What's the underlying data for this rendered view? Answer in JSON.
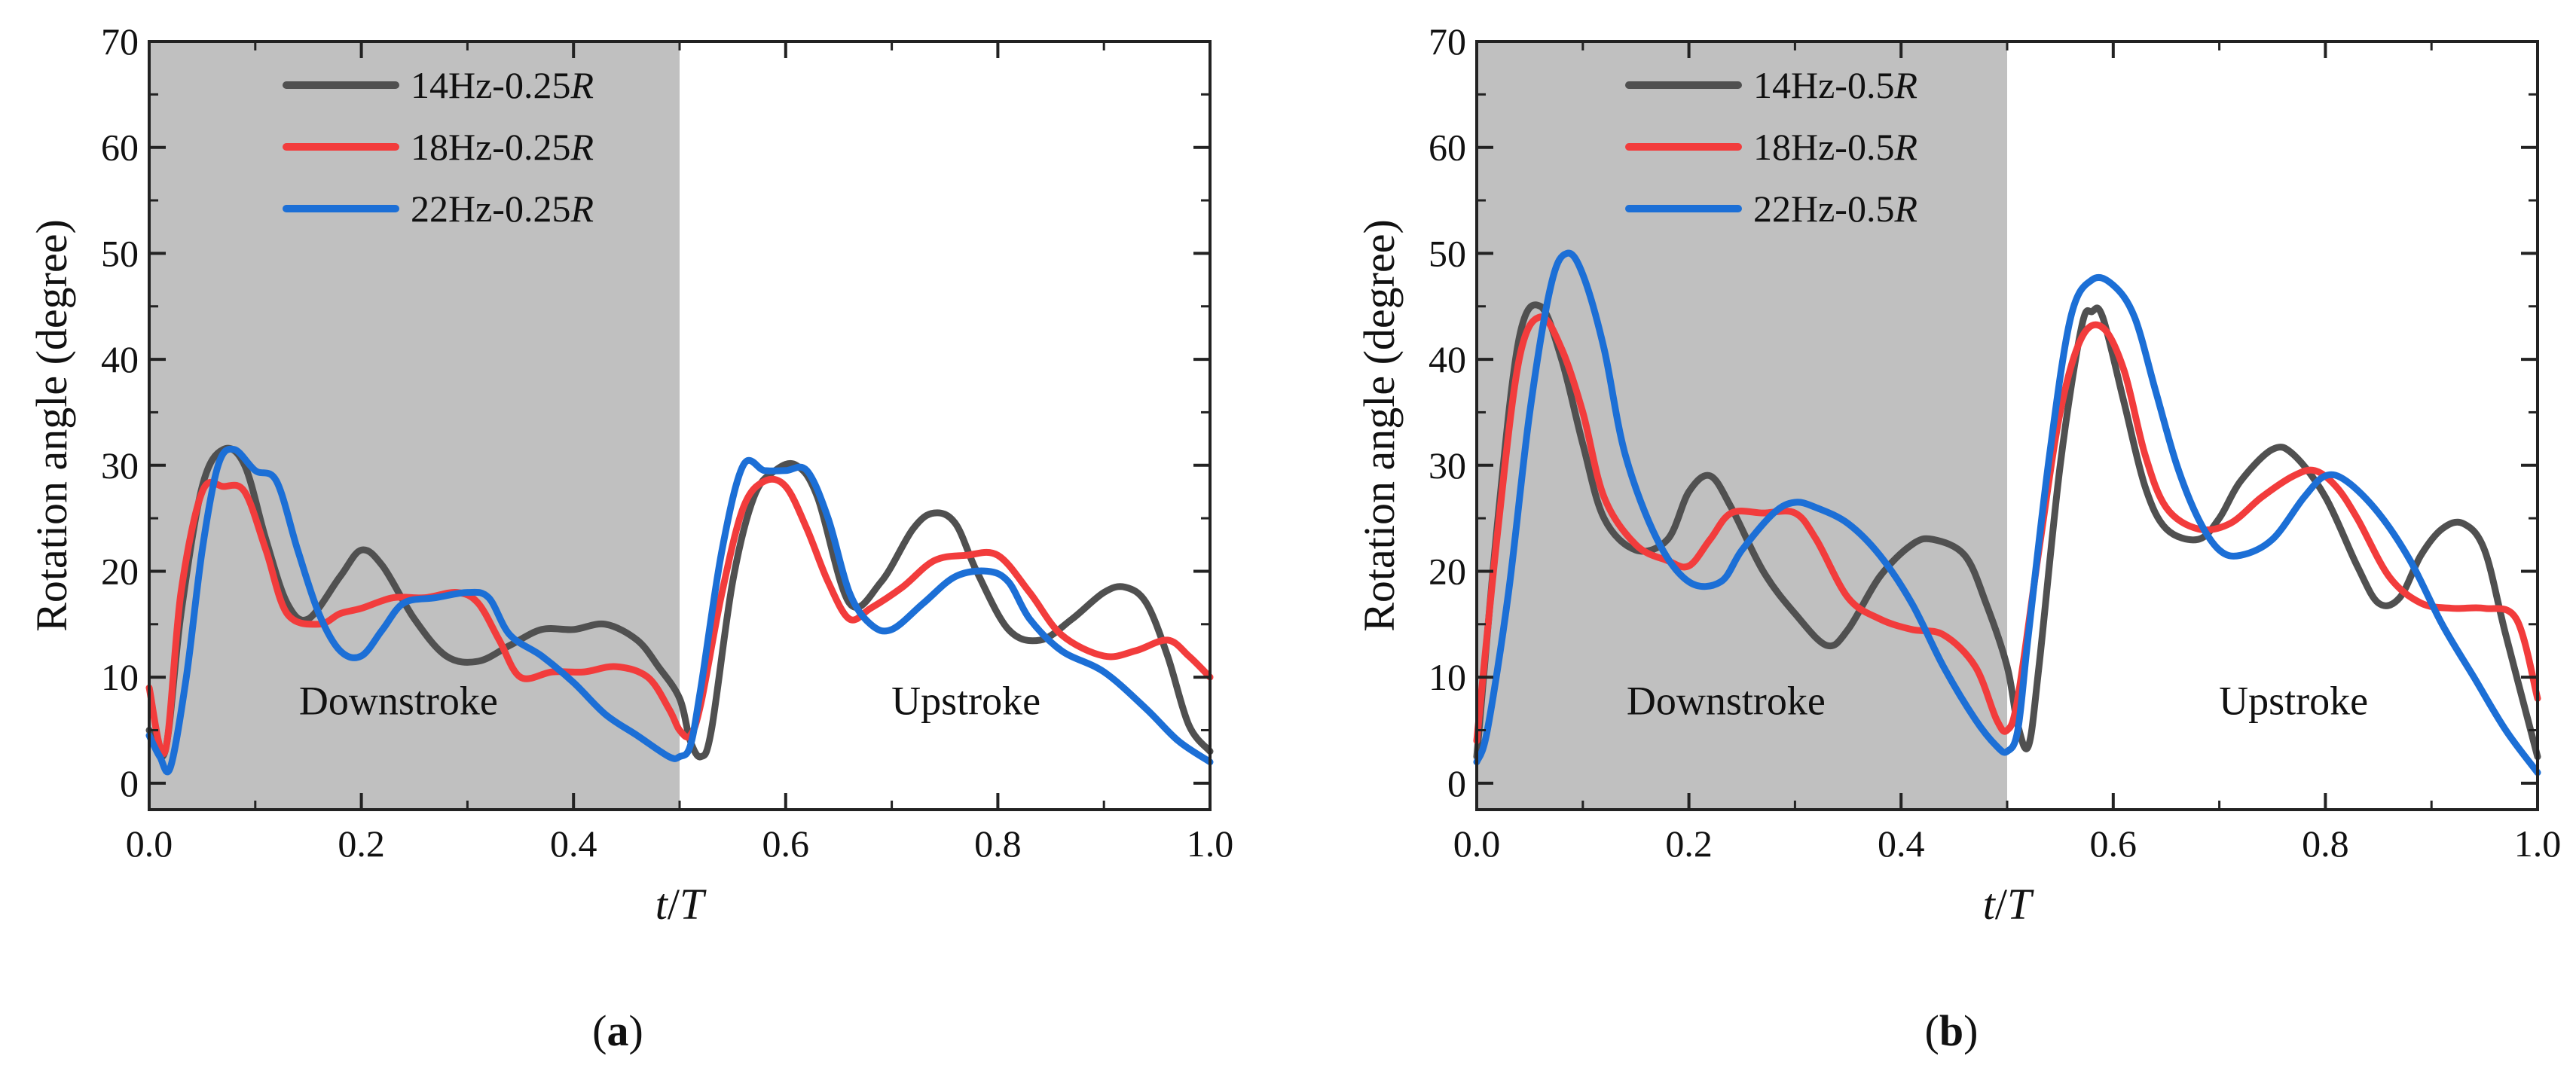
{
  "chart_data": [
    {
      "panel_label": "a",
      "type": "line",
      "xlabel": "t/T",
      "ylabel": "Rotation angle (degree)",
      "xlim": [
        0.0,
        1.0
      ],
      "ylim": [
        -2.5,
        70
      ],
      "xticks": [
        "0.0",
        "0.2",
        "0.4",
        "0.6",
        "0.8",
        "1.0"
      ],
      "yticks": [
        "0",
        "10",
        "20",
        "30",
        "40",
        "50",
        "60",
        "70"
      ],
      "shaded_region": {
        "from": 0.0,
        "to": 0.5,
        "color": "#c0c0c0"
      },
      "annotations": {
        "downstroke": "Downstroke",
        "upstroke": "Upstroke"
      },
      "series": [
        {
          "name": "14Hz-0.25R",
          "legend_main": "14Hz-0.25",
          "legend_italic": "R",
          "color": "#505050",
          "x": [
            0.0,
            0.015,
            0.03,
            0.05,
            0.07,
            0.09,
            0.11,
            0.13,
            0.15,
            0.18,
            0.2,
            0.22,
            0.25,
            0.28,
            0.31,
            0.34,
            0.37,
            0.4,
            0.43,
            0.46,
            0.48,
            0.5,
            0.51,
            0.52,
            0.53,
            0.55,
            0.57,
            0.59,
            0.61,
            0.63,
            0.66,
            0.69,
            0.72,
            0.74,
            0.76,
            0.78,
            0.81,
            0.84,
            0.87,
            0.9,
            0.92,
            0.94,
            0.96,
            0.98,
            1.0
          ],
          "y": [
            5.0,
            3.0,
            16.0,
            28.0,
            31.5,
            30.0,
            23.0,
            17.0,
            15.5,
            19.5,
            22.0,
            20.5,
            15.5,
            12.0,
            11.5,
            13.0,
            14.5,
            14.5,
            15.0,
            13.5,
            11.0,
            8.0,
            4.0,
            2.5,
            5.0,
            19.0,
            27.0,
            29.5,
            30.0,
            27.0,
            17.0,
            19.0,
            24.0,
            25.5,
            24.5,
            20.0,
            14.5,
            13.5,
            15.5,
            18.0,
            18.5,
            17.0,
            12.0,
            5.5,
            3.0
          ]
        },
        {
          "name": "18Hz-0.25R",
          "legend_main": "18Hz-0.25",
          "legend_italic": "R",
          "color": "#f23c3c",
          "x": [
            0.0,
            0.015,
            0.03,
            0.05,
            0.07,
            0.09,
            0.11,
            0.13,
            0.16,
            0.18,
            0.2,
            0.23,
            0.26,
            0.29,
            0.31,
            0.33,
            0.35,
            0.38,
            0.41,
            0.44,
            0.47,
            0.49,
            0.5,
            0.51,
            0.52,
            0.54,
            0.56,
            0.58,
            0.6,
            0.62,
            0.64,
            0.66,
            0.68,
            0.71,
            0.74,
            0.77,
            0.8,
            0.83,
            0.86,
            0.9,
            0.93,
            0.96,
            0.98,
            1.0
          ],
          "y": [
            9.0,
            3.0,
            18.0,
            27.5,
            28.0,
            27.5,
            22.0,
            16.0,
            15.0,
            16.0,
            16.5,
            17.5,
            17.5,
            18.0,
            17.0,
            13.5,
            10.0,
            10.5,
            10.5,
            11.0,
            10.0,
            7.0,
            5.0,
            4.5,
            7.5,
            18.0,
            26.0,
            28.5,
            28.0,
            24.0,
            19.0,
            15.5,
            16.5,
            18.5,
            21.0,
            21.5,
            21.5,
            18.0,
            14.0,
            12.0,
            12.5,
            13.5,
            12.0,
            10.0
          ]
        },
        {
          "name": "22Hz-0.25R",
          "legend_main": "22Hz-0.25",
          "legend_italic": "R",
          "color": "#1c6fd6",
          "x": [
            0.0,
            0.01,
            0.02,
            0.035,
            0.05,
            0.065,
            0.08,
            0.1,
            0.12,
            0.14,
            0.16,
            0.18,
            0.2,
            0.22,
            0.24,
            0.27,
            0.3,
            0.32,
            0.34,
            0.37,
            0.4,
            0.43,
            0.46,
            0.49,
            0.5,
            0.51,
            0.52,
            0.54,
            0.56,
            0.58,
            0.6,
            0.62,
            0.64,
            0.66,
            0.68,
            0.7,
            0.73,
            0.76,
            0.79,
            0.81,
            0.83,
            0.86,
            0.9,
            0.94,
            0.97,
            1.0
          ],
          "y": [
            4.5,
            2.5,
            1.5,
            10.0,
            22.0,
            30.0,
            31.5,
            29.5,
            28.5,
            22.0,
            16.0,
            12.5,
            12.0,
            14.5,
            17.0,
            17.5,
            18.0,
            17.5,
            14.0,
            12.0,
            9.5,
            6.5,
            4.5,
            2.5,
            2.5,
            3.5,
            9.0,
            22.0,
            30.0,
            29.5,
            29.5,
            29.5,
            25.0,
            18.0,
            15.0,
            14.5,
            17.0,
            19.5,
            20.0,
            19.0,
            15.5,
            12.5,
            10.5,
            7.0,
            4.0,
            2.0
          ]
        }
      ]
    },
    {
      "panel_label": "b",
      "type": "line",
      "xlabel": "t/T",
      "ylabel": "Rotation angle (degree)",
      "xlim": [
        0.0,
        1.0
      ],
      "ylim": [
        -2.5,
        70
      ],
      "xticks": [
        "0.0",
        "0.2",
        "0.4",
        "0.6",
        "0.8",
        "1.0"
      ],
      "yticks": [
        "0",
        "10",
        "20",
        "30",
        "40",
        "50",
        "60",
        "70"
      ],
      "shaded_region": {
        "from": 0.0,
        "to": 0.5,
        "color": "#c0c0c0"
      },
      "annotations": {
        "downstroke": "Downstroke",
        "upstroke": "Upstroke"
      },
      "series": [
        {
          "name": "14Hz-0.5R",
          "legend_main": "14Hz-0.5",
          "legend_italic": "R",
          "color": "#505050",
          "x": [
            0.0,
            0.02,
            0.04,
            0.06,
            0.08,
            0.1,
            0.12,
            0.15,
            0.18,
            0.2,
            0.22,
            0.24,
            0.27,
            0.3,
            0.33,
            0.35,
            0.38,
            0.41,
            0.43,
            0.46,
            0.48,
            0.5,
            0.51,
            0.52,
            0.53,
            0.55,
            0.57,
            0.58,
            0.59,
            0.61,
            0.63,
            0.65,
            0.68,
            0.7,
            0.72,
            0.75,
            0.77,
            0.8,
            0.83,
            0.85,
            0.87,
            0.89,
            0.91,
            0.93,
            0.95,
            0.97,
            1.0
          ],
          "y": [
            2.5,
            25.0,
            42.0,
            45.0,
            40.0,
            32.0,
            25.0,
            22.0,
            23.0,
            27.5,
            29.0,
            26.0,
            20.0,
            16.0,
            13.0,
            14.5,
            19.5,
            22.5,
            23.0,
            21.5,
            17.0,
            11.0,
            5.5,
            3.5,
            11.0,
            30.0,
            43.0,
            44.5,
            44.0,
            36.0,
            28.0,
            24.0,
            23.0,
            25.0,
            28.5,
            31.5,
            31.0,
            27.0,
            20.5,
            17.0,
            17.5,
            21.5,
            24.0,
            24.5,
            22.0,
            14.0,
            2.5
          ]
        },
        {
          "name": "18Hz-0.5R",
          "legend_main": "18Hz-0.5",
          "legend_italic": "R",
          "color": "#f23c3c",
          "x": [
            0.0,
            0.02,
            0.04,
            0.06,
            0.08,
            0.1,
            0.12,
            0.15,
            0.18,
            0.2,
            0.22,
            0.24,
            0.27,
            0.3,
            0.32,
            0.35,
            0.38,
            0.41,
            0.44,
            0.47,
            0.49,
            0.5,
            0.51,
            0.53,
            0.55,
            0.57,
            0.59,
            0.61,
            0.63,
            0.65,
            0.68,
            0.71,
            0.74,
            0.77,
            0.79,
            0.81,
            0.83,
            0.86,
            0.89,
            0.92,
            0.95,
            0.98,
            1.0
          ],
          "y": [
            4.0,
            24.0,
            40.0,
            44.0,
            41.0,
            35.0,
            27.0,
            22.5,
            21.0,
            20.5,
            23.0,
            25.5,
            25.5,
            25.5,
            23.0,
            17.5,
            15.5,
            14.5,
            14.0,
            11.0,
            6.0,
            5.0,
            8.0,
            22.0,
            35.0,
            42.0,
            43.0,
            39.0,
            31.0,
            26.0,
            24.0,
            24.5,
            27.0,
            29.0,
            29.5,
            28.0,
            25.0,
            19.5,
            17.0,
            16.5,
            16.5,
            15.5,
            8.0
          ]
        },
        {
          "name": "22Hz-0.5R",
          "legend_main": "22Hz-0.5",
          "legend_italic": "R",
          "color": "#1c6fd6",
          "x": [
            0.0,
            0.01,
            0.03,
            0.05,
            0.07,
            0.085,
            0.1,
            0.12,
            0.14,
            0.17,
            0.2,
            0.23,
            0.25,
            0.28,
            0.3,
            0.32,
            0.35,
            0.38,
            0.41,
            0.44,
            0.47,
            0.49,
            0.5,
            0.51,
            0.52,
            0.54,
            0.56,
            0.58,
            0.6,
            0.62,
            0.64,
            0.66,
            0.68,
            0.7,
            0.72,
            0.75,
            0.78,
            0.8,
            0.82,
            0.85,
            0.88,
            0.91,
            0.94,
            0.97,
            1.0
          ],
          "y": [
            2.0,
            5.0,
            18.0,
            35.0,
            47.0,
            50.0,
            48.0,
            41.0,
            31.0,
            23.0,
            19.0,
            19.0,
            22.0,
            25.5,
            26.5,
            26.0,
            24.5,
            21.5,
            17.0,
            11.0,
            6.0,
            3.5,
            3.0,
            5.0,
            14.0,
            31.0,
            44.0,
            47.5,
            47.0,
            44.0,
            37.0,
            30.0,
            25.0,
            22.0,
            21.5,
            23.0,
            27.0,
            29.0,
            28.5,
            25.5,
            21.0,
            15.0,
            10.0,
            5.0,
            1.0
          ]
        }
      ]
    }
  ]
}
